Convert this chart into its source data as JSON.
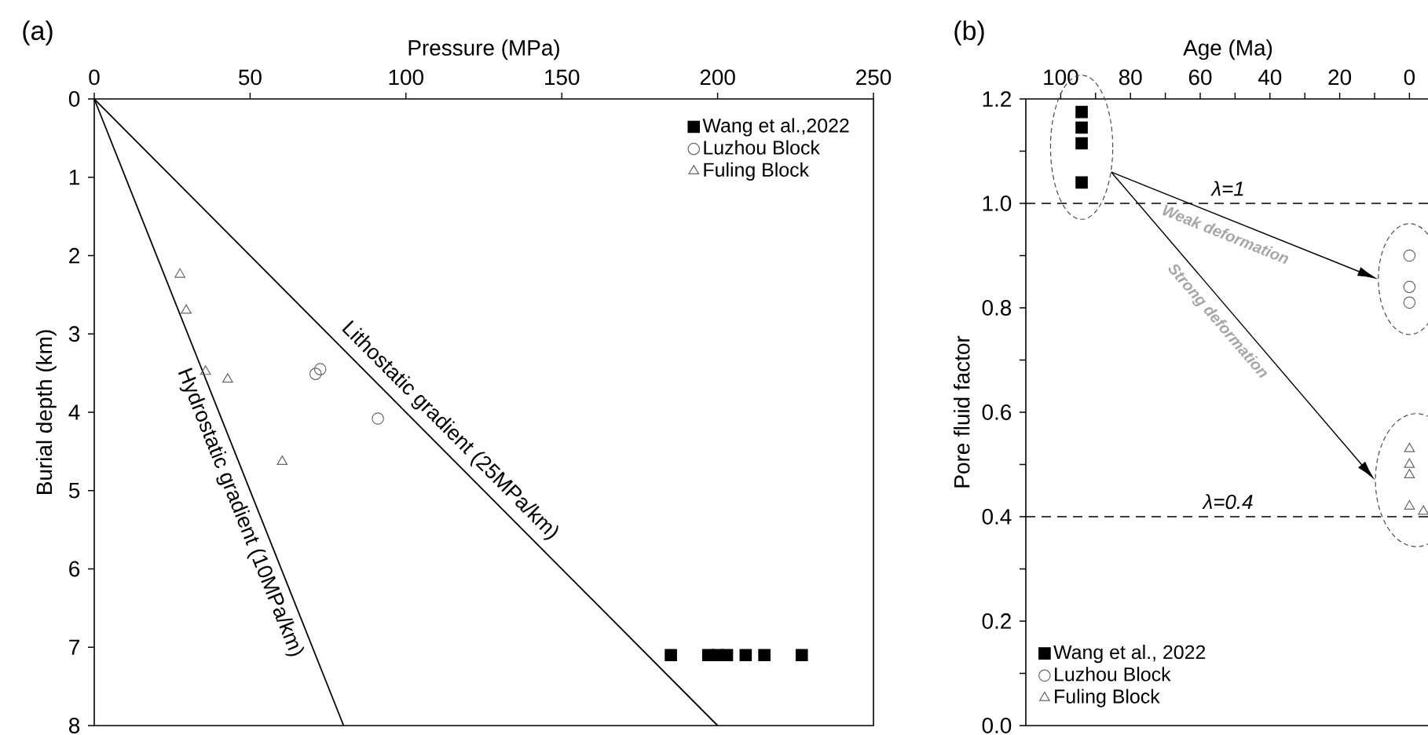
{
  "chart_data": [
    {
      "type": "scatter",
      "title": "(a)",
      "xlabel": "Pressure (MPa)",
      "ylabel": "Burial depth (km)",
      "xlim": [
        0,
        250
      ],
      "xticks": [
        0,
        50,
        100,
        150,
        200,
        250
      ],
      "ylim": [
        8,
        0
      ],
      "yticks": [
        0,
        1,
        2,
        3,
        4,
        5,
        6,
        7,
        8
      ],
      "legend": "top right",
      "series": [
        {
          "type": "line",
          "color": "#000000",
          "x": [
            0,
            80
          ],
          "values": [
            0,
            8
          ]
        },
        {
          "type": "line",
          "color": "#000000",
          "x": [
            0,
            200
          ],
          "values": [
            0,
            8
          ]
        },
        {
          "name": "Wang et al.,2022",
          "marker": "square",
          "color": "#000000",
          "x": [
            185,
            197,
            200,
            203,
            209,
            215,
            227
          ],
          "values": [
            7.1,
            7.1,
            7.1,
            7.1,
            7.1,
            7.1,
            7.1
          ]
        },
        {
          "name": "Luzhou Block",
          "marker": "circle",
          "color": "#666666",
          "x": [
            71,
            72.5,
            91
          ],
          "values": [
            3.51,
            3.45,
            4.08
          ]
        },
        {
          "name": "Fuling Block",
          "marker": "triangle",
          "color": "#666666",
          "x": [
            27.5,
            29.5,
            35.7,
            42.8,
            60.3
          ],
          "values": [
            2.24,
            2.7,
            3.48,
            3.58,
            4.63
          ]
        }
      ],
      "annotations": [
        "Hydrostatic gradient (10MPa/km)",
        "Lithostatic gradient (25MPa/km)"
      ]
    },
    {
      "type": "scatter",
      "title": "(b)",
      "xlabel": "Age (Ma)",
      "ylabel": "Pore fluid factor",
      "xlim": [
        110,
        -6
      ],
      "xticks": [
        100,
        {
          "value": 90,
          "label": null
        },
        80,
        {
          "value": 70,
          "label": null
        },
        60,
        {
          "value": 50,
          "label": null
        },
        40,
        {
          "value": 30,
          "label": null
        },
        20,
        {
          "value": 10,
          "label": null
        },
        0
      ],
      "ylim": [
        0,
        1.2
      ],
      "yticks": [
        {
          "value": 0,
          "label": "0.0"
        },
        {
          "value": 0.1,
          "label": null
        },
        {
          "value": 0.2,
          "label": "0.2"
        },
        {
          "value": 0.3,
          "label": null
        },
        {
          "value": 0.4,
          "label": "0.4"
        },
        {
          "value": 0.5,
          "label": null
        },
        {
          "value": 0.6,
          "label": "0.6"
        },
        {
          "value": 0.7,
          "label": null
        },
        {
          "value": 0.8,
          "label": "0.8"
        },
        {
          "value": 0.9,
          "label": null
        },
        {
          "value": 1.0,
          "label": "1.0"
        },
        {
          "value": 1.1,
          "label": null
        },
        {
          "value": 1.2,
          "label": "1.2"
        }
      ],
      "legend": "bottom left",
      "series": [
        {
          "name": "Wang et al., 2022",
          "marker": "square",
          "color": "#000000",
          "x": [
            94,
            94,
            94,
            94
          ],
          "values": [
            1.04,
            1.115,
            1.145,
            1.175
          ]
        },
        {
          "name": "Luzhou Block",
          "marker": "circle",
          "color": "#666666",
          "x": [
            0,
            0,
            0
          ],
          "values": [
            0.9,
            0.84,
            0.81
          ]
        },
        {
          "name": "Fuling Block",
          "marker": "triangle",
          "color": "#666666",
          "x": [
            0,
            0,
            0,
            0,
            -4
          ],
          "values": [
            0.53,
            0.5,
            0.48,
            0.42,
            0.41
          ]
        }
      ],
      "ref_lines": [
        {
          "axis": "y",
          "value": 1.0,
          "label": "λ=1",
          "line_style": "dashed"
        },
        {
          "axis": "y",
          "value": 0.4,
          "label": "λ=0.4",
          "line_style": "dashed"
        }
      ],
      "annotations": [
        "Weak deformation",
        "Strong deformation"
      ]
    }
  ]
}
